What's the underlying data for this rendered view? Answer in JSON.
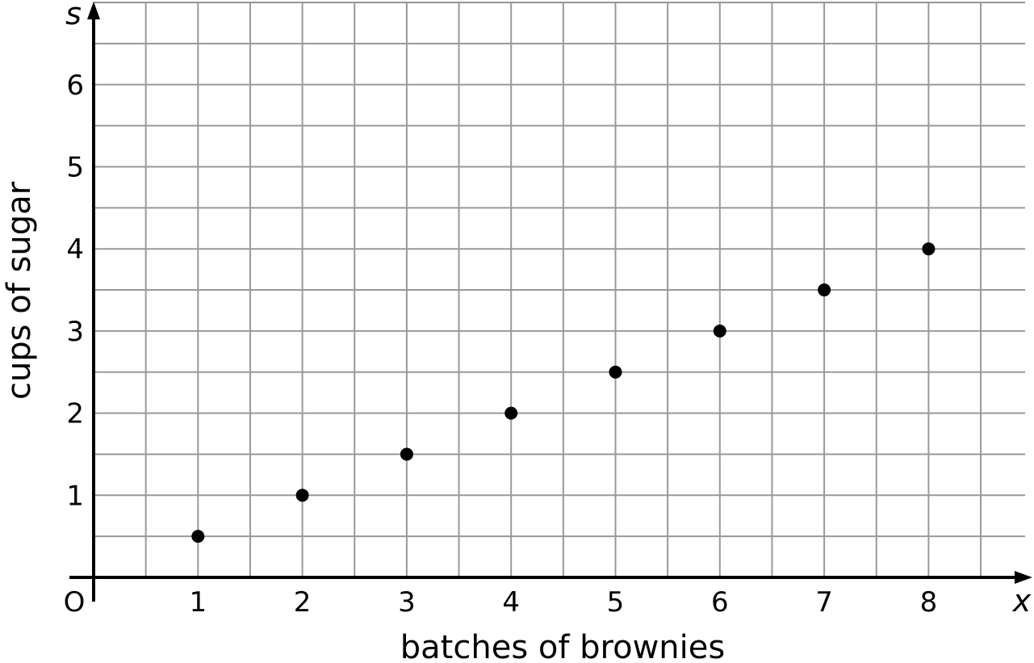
{
  "chart_data": {
    "type": "scatter",
    "xlabel": "batches of brownies",
    "ylabel": "cups of sugar",
    "x_variable": "x",
    "y_variable": "s",
    "origin_label": "O",
    "xlim": [
      0,
      9
    ],
    "ylim": [
      0,
      7
    ],
    "grid": true,
    "x_ticks": [
      "1",
      "2",
      "3",
      "4",
      "5",
      "6",
      "7",
      "8"
    ],
    "y_ticks": [
      "1",
      "2",
      "3",
      "4",
      "5",
      "6"
    ],
    "series": [
      {
        "points": [
          {
            "x": 1,
            "y": 0.5
          },
          {
            "x": 2,
            "y": 1
          },
          {
            "x": 3,
            "y": 1.5
          },
          {
            "x": 4,
            "y": 2
          },
          {
            "x": 5,
            "y": 2.5
          },
          {
            "x": 6,
            "y": 3
          },
          {
            "x": 7,
            "y": 3.5
          },
          {
            "x": 8,
            "y": 4
          }
        ]
      }
    ],
    "colors": {
      "grid": "#999999",
      "axis": "#000000",
      "points": "#000000"
    }
  }
}
